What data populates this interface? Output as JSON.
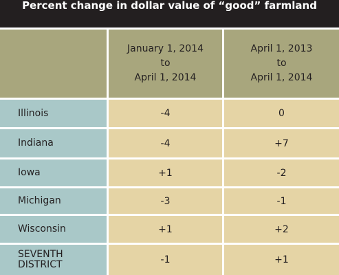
{
  "table": {
    "title": "Percent change in dollar value of “good” farmland",
    "columns": [
      [
        "January 1, 2014",
        "to",
        "April 1, 2014"
      ],
      [
        "April 1, 2013",
        "to",
        "April 1, 2014"
      ]
    ],
    "rows": [
      [
        "Illinois",
        "-4",
        "0"
      ],
      [
        "Indiana",
        "-4",
        "+7"
      ],
      [
        "Iowa",
        "+1",
        "-2"
      ],
      [
        "Michigan",
        "-3",
        "-1"
      ],
      [
        "Wisconsin",
        "+1",
        "+2"
      ],
      [
        "SEVENTH DISTRICT",
        "-1",
        "+1"
      ]
    ]
  }
}
